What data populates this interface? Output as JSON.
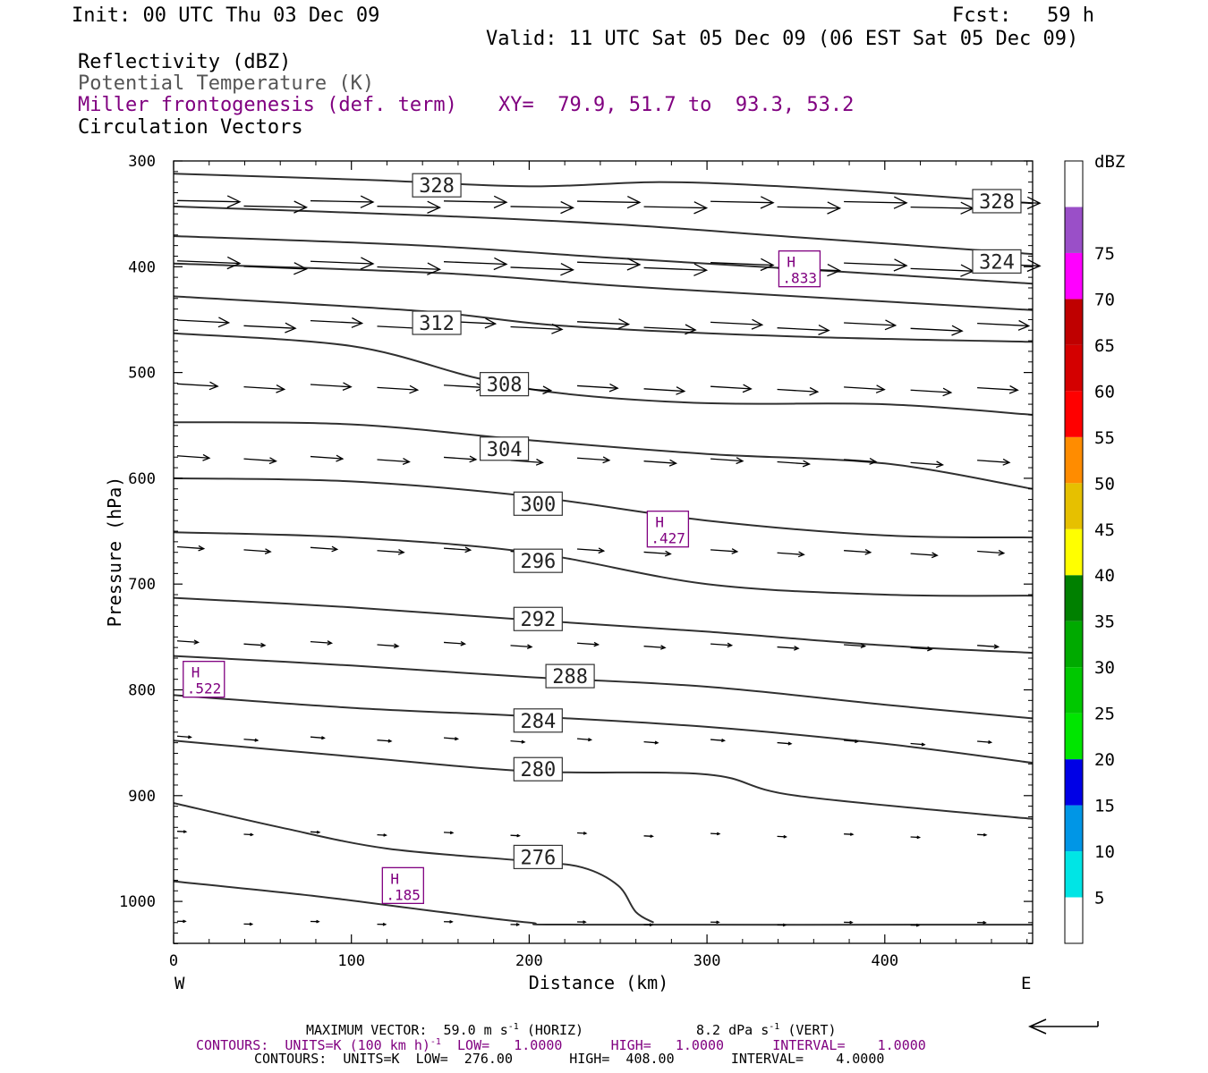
{
  "header": {
    "init": "Init: 00 UTC Thu 03 Dec 09",
    "fcst": "Fcst:   59 h",
    "valid": "Valid: 11 UTC Sat 05 Dec 09 (06 EST Sat 05 Dec 09)",
    "fields": {
      "reflectivity": "Reflectivity (dBZ)",
      "theta": "Potential Temperature (K)",
      "frontogenesis": "Miller frontogenesis (def. term)",
      "xy": "XY=  79.9, 51.7 to  93.3, 53.2",
      "circulation": "Circulation Vectors"
    }
  },
  "footer": {
    "max_vector": "MAXIMUM VECTOR:  59.0 m s",
    "max_vector_exp": "-1",
    "max_vector_horiz": " (HORIZ)",
    "vert": "8.2 dPa s",
    "vert_exp": "-1",
    "vert_label": " (VERT)",
    "contours1_a": "CONTOURS:  UNITS=K (100 km h)",
    "contours1_exp": "-1",
    "contours1_b": "  LOW=   1.0000      HIGH=   1.0000      INTERVAL=    1.0000",
    "contours2": "CONTOURS:  UNITS=K  LOW=  276.00       HIGH=  408.00       INTERVAL=    4.0000"
  },
  "colors": {
    "purple": "#800080",
    "contour": "#303030",
    "colorbar": [
      "#ffffff",
      "#00e5e5",
      "#0096e6",
      "#0000e6",
      "#00e600",
      "#00c800",
      "#00aa00",
      "#008000",
      "#ffff00",
      "#e6c000",
      "#ff8c00",
      "#ff0000",
      "#d40000",
      "#bf0000",
      "#ff00ff",
      "#9a4fc8",
      "#ffffff"
    ]
  },
  "chart_data": {
    "type": "cross-section",
    "xlabel": "Distance (km)",
    "ylabel": "Pressure (hPa)",
    "xlim": [
      0,
      483
    ],
    "ylim_pressure": [
      300,
      1040
    ],
    "x_ticks": [
      "0",
      "100",
      "200",
      "300",
      "400"
    ],
    "y_ticks": [
      "300",
      "400",
      "500",
      "600",
      "700",
      "800",
      "900",
      "1000"
    ],
    "left_label": "W",
    "right_label": "E",
    "colorbar_unit": "dBZ",
    "colorbar_labels": [
      "5",
      "10",
      "15",
      "20",
      "25",
      "30",
      "35",
      "40",
      "45",
      "50",
      "55",
      "60",
      "65",
      "70",
      "75"
    ],
    "theta_labels": [
      {
        "text": "328",
        "x": 148,
        "p": 323
      },
      {
        "text": "328",
        "x": 463,
        "p": 338
      },
      {
        "text": "324",
        "x": 463,
        "p": 395
      },
      {
        "text": "312",
        "x": 148,
        "p": 453
      },
      {
        "text": "308",
        "x": 186,
        "p": 511
      },
      {
        "text": "304",
        "x": 186,
        "p": 572
      },
      {
        "text": "300",
        "x": 205,
        "p": 624
      },
      {
        "text": "296",
        "x": 205,
        "p": 678
      },
      {
        "text": "292",
        "x": 205,
        "p": 733
      },
      {
        "text": "288",
        "x": 223,
        "p": 787
      },
      {
        "text": "284",
        "x": 205,
        "p": 829
      },
      {
        "text": "280",
        "x": 205,
        "p": 875
      },
      {
        "text": "276",
        "x": 205,
        "p": 958
      }
    ],
    "theta_lines": [
      [
        [
          0,
          312
        ],
        [
          110,
          318
        ],
        [
          200,
          324
        ],
        [
          270,
          320
        ],
        [
          330,
          323
        ],
        [
          400,
          330
        ],
        [
          483,
          340
        ]
      ],
      [
        [
          0,
          343
        ],
        [
          150,
          352
        ],
        [
          250,
          360
        ],
        [
          350,
          372
        ],
        [
          483,
          388
        ]
      ],
      [
        [
          0,
          371
        ],
        [
          140,
          380
        ],
        [
          250,
          392
        ],
        [
          350,
          402
        ],
        [
          483,
          416
        ]
      ],
      [
        [
          0,
          397
        ],
        [
          150,
          406
        ],
        [
          250,
          418
        ],
        [
          350,
          428
        ],
        [
          483,
          441
        ]
      ],
      [
        [
          0,
          428
        ],
        [
          140,
          442
        ],
        [
          220,
          456
        ],
        [
          350,
          466
        ],
        [
          483,
          471
        ]
      ],
      [
        [
          0,
          463
        ],
        [
          100,
          475
        ],
        [
          170,
          505
        ],
        [
          220,
          520
        ],
        [
          300,
          529
        ],
        [
          400,
          530
        ],
        [
          483,
          540
        ]
      ],
      [
        [
          0,
          547
        ],
        [
          100,
          549
        ],
        [
          200,
          564
        ],
        [
          300,
          577
        ],
        [
          400,
          586
        ],
        [
          483,
          610
        ]
      ],
      [
        [
          0,
          600
        ],
        [
          100,
          603
        ],
        [
          200,
          617
        ],
        [
          300,
          640
        ],
        [
          400,
          654
        ],
        [
          483,
          656
        ]
      ],
      [
        [
          0,
          651
        ],
        [
          100,
          656
        ],
        [
          200,
          670
        ],
        [
          300,
          700
        ],
        [
          400,
          710
        ],
        [
          483,
          711
        ]
      ],
      [
        [
          0,
          713
        ],
        [
          100,
          722
        ],
        [
          200,
          734
        ],
        [
          300,
          745
        ],
        [
          400,
          758
        ],
        [
          483,
          765
        ]
      ],
      [
        [
          0,
          768
        ],
        [
          100,
          777
        ],
        [
          200,
          788
        ],
        [
          300,
          797
        ],
        [
          400,
          814
        ],
        [
          483,
          827
        ]
      ],
      [
        [
          0,
          805
        ],
        [
          100,
          817
        ],
        [
          200,
          825
        ],
        [
          300,
          835
        ],
        [
          400,
          851
        ],
        [
          483,
          869
        ]
      ],
      [
        [
          0,
          848
        ],
        [
          100,
          863
        ],
        [
          200,
          877
        ],
        [
          300,
          880
        ],
        [
          350,
          900
        ],
        [
          483,
          922
        ]
      ],
      [
        [
          0,
          907
        ],
        [
          60,
          930
        ],
        [
          120,
          950
        ],
        [
          200,
          962
        ],
        [
          230,
          968
        ],
        [
          250,
          985
        ],
        [
          260,
          1010
        ],
        [
          270,
          1020
        ]
      ],
      [
        [
          0,
          981
        ],
        [
          80,
          995
        ],
        [
          150,
          1010
        ],
        [
          200,
          1020
        ],
        [
          230,
          1022
        ],
        [
          483,
          1022
        ]
      ]
    ],
    "frontogenesis_maxima": [
      {
        "label": "H",
        "value": ".833",
        "x": 352,
        "p": 402
      },
      {
        "label": "H",
        "value": ".427",
        "x": 278,
        "p": 648
      },
      {
        "label": "H",
        "value": ".522",
        "x": 17,
        "p": 790
      },
      {
        "label": "H",
        "value": ".185",
        "x": 129,
        "p": 985
      }
    ],
    "vector_levels": [
      {
        "p": 340,
        "u": 1.0,
        "w": 0.02
      },
      {
        "p": 397,
        "u": 1.0,
        "w": 0.04
      },
      {
        "p": 453,
        "u": 0.8,
        "w": 0.05
      },
      {
        "p": 512,
        "u": 0.6,
        "w": 0.06
      },
      {
        "p": 580,
        "u": 0.45,
        "w": 0.07
      },
      {
        "p": 666,
        "u": 0.35,
        "w": 0.07
      },
      {
        "p": 755,
        "u": 0.25,
        "w": 0.07
      },
      {
        "p": 845,
        "u": 0.12,
        "w": 0.08
      },
      {
        "p": 935,
        "u": 0.03,
        "w": 0.05
      },
      {
        "p": 1020,
        "u": 0.02,
        "w": 0.02
      }
    ]
  }
}
